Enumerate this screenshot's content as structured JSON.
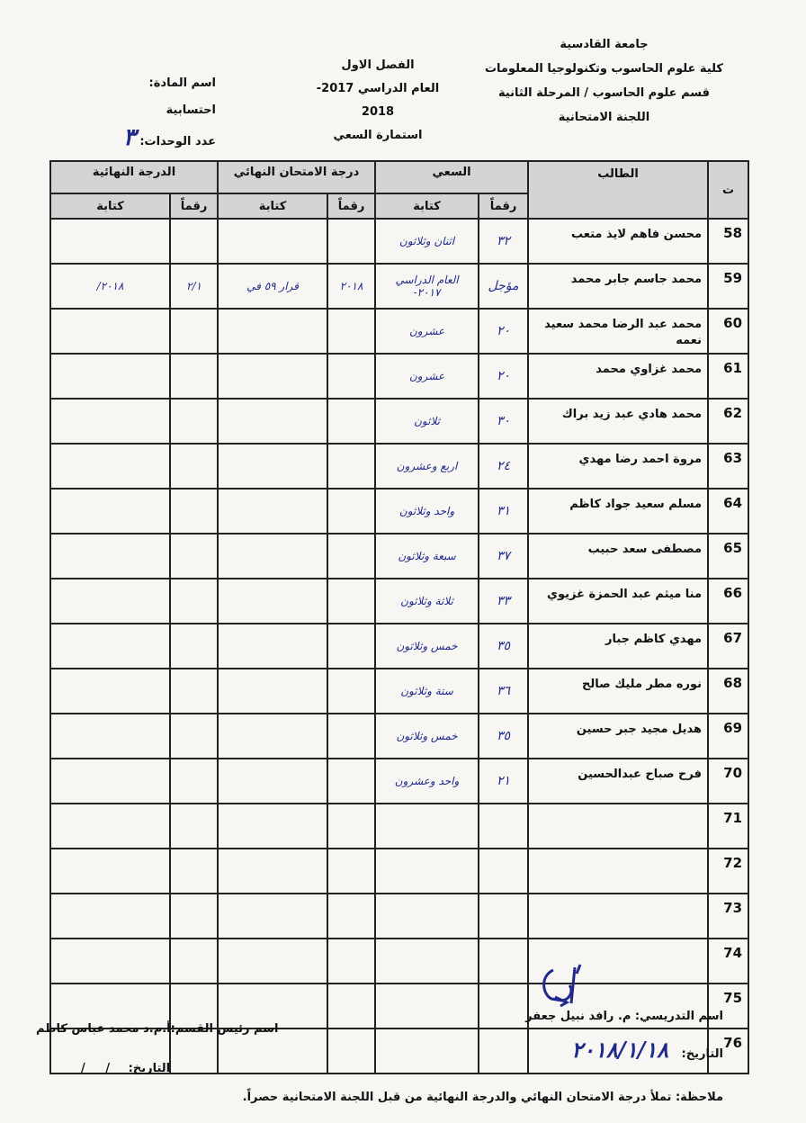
{
  "header": {
    "university": "جامعة القادسية",
    "college": "كلية علوم الحاسوب وتكنولوجيا المعلومات",
    "department": "قسم علوم الحاسوب / المرحلة الثانية",
    "committee": "اللجنة الامتحانية",
    "semester": "الفصل الاول",
    "academic_year": "العام الدراسي 2017-2018",
    "form_title": "استمارة السعي",
    "subject_label": "اسم المادة: احتسابية",
    "units_label": "عدد الوحدات:",
    "units_value": "٣"
  },
  "table": {
    "col_no": "ت",
    "col_student": "الطالب",
    "group_coursework": "السعي",
    "group_final_exam": "درجة الامتحان النهائي",
    "group_final_grade": "الدرجة النهائية",
    "sub_digits": "رقماً",
    "sub_words": "كتابة",
    "rows": [
      {
        "no": "58",
        "name": "محسن فاهم لايذ متعب",
        "cw_num": "٣٢",
        "cw_words": "اثنان وثلاثون",
        "fe_num": "",
        "fe_words": "",
        "fg_num": "",
        "fg_words": ""
      },
      {
        "no": "59",
        "name": "محمد جاسم جابر محمد",
        "cw_num": "مؤجل",
        "cw_words": "العام الدراسي ٢٠١٧-",
        "fe_num": "٢٠١٨",
        "fe_words": "قرار ٥٩ في",
        "fg_num": "٢/١",
        "fg_words": "٢٠١٨/"
      },
      {
        "no": "60",
        "name": "محمد عبد الرضا محمد سعيد نعمه",
        "cw_num": "٢٠",
        "cw_words": "عشرون",
        "fe_num": "",
        "fe_words": "",
        "fg_num": "",
        "fg_words": ""
      },
      {
        "no": "61",
        "name": "محمد غزاوي محمد",
        "cw_num": "٢٠",
        "cw_words": "عشرون",
        "fe_num": "",
        "fe_words": "",
        "fg_num": "",
        "fg_words": ""
      },
      {
        "no": "62",
        "name": "محمد هادي عبد زيد براك",
        "cw_num": "٣٠",
        "cw_words": "ثلاثون",
        "fe_num": "",
        "fe_words": "",
        "fg_num": "",
        "fg_words": ""
      },
      {
        "no": "63",
        "name": "مروة احمد رضا مهدي",
        "cw_num": "٢٤",
        "cw_words": "اربع وعشرون",
        "fe_num": "",
        "fe_words": "",
        "fg_num": "",
        "fg_words": ""
      },
      {
        "no": "64",
        "name": "مسلم سعيد جواد كاظم",
        "cw_num": "٣١",
        "cw_words": "واحد وثلاثون",
        "fe_num": "",
        "fe_words": "",
        "fg_num": "",
        "fg_words": ""
      },
      {
        "no": "65",
        "name": "مصطفى سعد حبيب",
        "cw_num": "٣٧",
        "cw_words": "سبعة وثلاثون",
        "fe_num": "",
        "fe_words": "",
        "fg_num": "",
        "fg_words": ""
      },
      {
        "no": "66",
        "name": "منا ميثم عبد الحمزة غزيوي",
        "cw_num": "٣٣",
        "cw_words": "ثلاثة وثلاثون",
        "fe_num": "",
        "fe_words": "",
        "fg_num": "",
        "fg_words": ""
      },
      {
        "no": "67",
        "name": "مهدي كاظم جبار",
        "cw_num": "٣٥",
        "cw_words": "خمس وثلاثون",
        "fe_num": "",
        "fe_words": "",
        "fg_num": "",
        "fg_words": ""
      },
      {
        "no": "68",
        "name": "نوره مطر مليك صالح",
        "cw_num": "٣٦",
        "cw_words": "ستة وثلاثون",
        "fe_num": "",
        "fe_words": "",
        "fg_num": "",
        "fg_words": ""
      },
      {
        "no": "69",
        "name": "هديل مجيد جبر حسين",
        "cw_num": "٣٥",
        "cw_words": "خمس وثلاثون",
        "fe_num": "",
        "fe_words": "",
        "fg_num": "",
        "fg_words": ""
      },
      {
        "no": "70",
        "name": "فرح صباح عبدالحسين",
        "cw_num": "٢١",
        "cw_words": "واحد وعشرون",
        "fe_num": "",
        "fe_words": "",
        "fg_num": "",
        "fg_words": ""
      },
      {
        "no": "71",
        "name": "",
        "cw_num": "",
        "cw_words": "",
        "fe_num": "",
        "fe_words": "",
        "fg_num": "",
        "fg_words": ""
      },
      {
        "no": "72",
        "name": "",
        "cw_num": "",
        "cw_words": "",
        "fe_num": "",
        "fe_words": "",
        "fg_num": "",
        "fg_words": ""
      },
      {
        "no": "73",
        "name": "",
        "cw_num": "",
        "cw_words": "",
        "fe_num": "",
        "fe_words": "",
        "fg_num": "",
        "fg_words": ""
      },
      {
        "no": "74",
        "name": "",
        "cw_num": "",
        "cw_words": "",
        "fe_num": "",
        "fe_words": "",
        "fg_num": "",
        "fg_words": ""
      },
      {
        "no": "75",
        "name": "",
        "cw_num": "",
        "cw_words": "",
        "fe_num": "",
        "fe_words": "",
        "fg_num": "",
        "fg_words": ""
      },
      {
        "no": "76",
        "name": "",
        "cw_num": "",
        "cw_words": "",
        "fe_num": "",
        "fe_words": "",
        "fg_num": "",
        "fg_words": ""
      }
    ]
  },
  "footer": {
    "instructor_label": "اسم التدريسي: م. رافد نبيل جعفر",
    "instructor_date_label": "التاريخ:",
    "instructor_date_value": "٢٠١٨/١/١٨",
    "head_label": "اسم رئيس القسم:أ.م.د محمد عباس كاظم",
    "head_date_label": "التاريخ:",
    "head_date_value": "/     /",
    "note": "ملاحظة: تملأ درجة الامتحان النهائي والدرجة النهائية من قبل اللجنة الامتحانية حصراً."
  },
  "colors": {
    "ink": "#1f2a8a",
    "header_fill": "#d4d4d4"
  }
}
